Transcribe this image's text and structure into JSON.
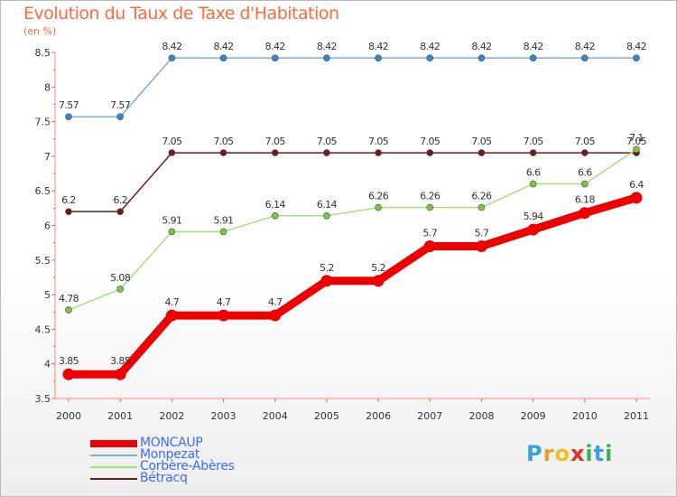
{
  "header": {
    "title": "Evolution du Taux de Taxe d'Habitation",
    "unit": "(en %)"
  },
  "logo": {
    "letters": [
      "P",
      "r",
      "o",
      "x",
      "i",
      "t",
      "i"
    ],
    "colors": [
      "#3aa0e0",
      "#e8a020",
      "#f0c020",
      "#e03020",
      "#40b050",
      "#3aa0e0",
      "#40b050"
    ]
  },
  "chart_data": {
    "type": "line",
    "title": "Evolution du Taux de Taxe d'Habitation",
    "ylabel": "(en %)",
    "xlabel": "",
    "x": [
      "2000",
      "2001",
      "2002",
      "2003",
      "2004",
      "2005",
      "2006",
      "2007",
      "2008",
      "2009",
      "2010",
      "2011"
    ],
    "ylim": [
      3.5,
      8.5
    ],
    "yticks": [
      "3.5",
      "4",
      "4.5",
      "5",
      "5.5",
      "6",
      "6.5",
      "7",
      "7.5",
      "8",
      "8.5"
    ],
    "grid": false,
    "legend_position": "bottom-left",
    "series": [
      {
        "name": "Bétracq",
        "color": "#6b1c1c",
        "fill": "#6b1c1c",
        "bold": false,
        "values": [
          6.2,
          6.2,
          7.05,
          7.05,
          7.05,
          7.05,
          7.05,
          7.05,
          7.05,
          7.05,
          7.05,
          7.05
        ],
        "labels": [
          "6.2",
          "6.2",
          "7.05",
          "7.05",
          "7.05",
          "7.05",
          "7.05",
          "7.05",
          "7.05",
          "7.05",
          "7.05",
          "7.05"
        ]
      },
      {
        "name": "Corbère-Abères",
        "color": "#a6e07a",
        "fill": "#7cc63c",
        "bold": false,
        "values": [
          4.78,
          5.08,
          5.91,
          5.91,
          6.14,
          6.14,
          6.26,
          6.26,
          6.26,
          6.6,
          6.6,
          7.1
        ],
        "labels": [
          "4.78",
          "5.08",
          "5.91",
          "5.91",
          "6.14",
          "6.14",
          "6.26",
          "6.26",
          "6.26",
          "6.6",
          "6.6",
          "7.1"
        ]
      },
      {
        "name": "Monpezat",
        "color": "#7aaedc",
        "fill": "#3a86c8",
        "bold": false,
        "values": [
          7.57,
          7.57,
          8.42,
          8.42,
          8.42,
          8.42,
          8.42,
          8.42,
          8.42,
          8.42,
          8.42,
          8.42
        ],
        "labels": [
          "7.57",
          "7.57",
          "8.42",
          "8.42",
          "8.42",
          "8.42",
          "8.42",
          "8.42",
          "8.42",
          "8.42",
          "8.42",
          "8.42"
        ]
      },
      {
        "name": "MONCAUP",
        "color": "#ee0000",
        "fill": "#ee0000",
        "bold": true,
        "values": [
          3.85,
          3.85,
          4.7,
          4.7,
          4.7,
          5.2,
          5.2,
          5.7,
          5.7,
          5.94,
          6.18,
          6.4
        ],
        "labels": [
          "3.85",
          "3.85",
          "4.7",
          "4.7",
          "4.7",
          "5.2",
          "5.2",
          "5.7",
          "5.7",
          "5.94",
          "6.18",
          "6.4"
        ]
      }
    ],
    "legend": [
      "MONCAUP",
      "Monpezat",
      "Corbère-Abères",
      "Bétracq"
    ]
  }
}
